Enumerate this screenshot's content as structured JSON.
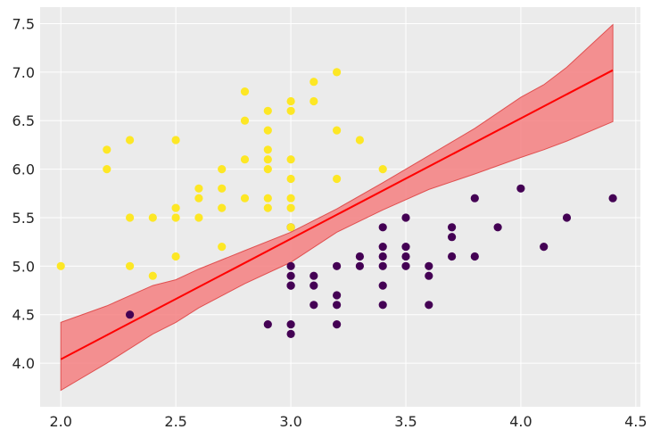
{
  "chart_data": {
    "type": "scatter",
    "title": "",
    "xlabel": "",
    "ylabel": "",
    "xlim": [
      1.91,
      4.52
    ],
    "ylim": [
      3.55,
      7.67
    ],
    "grid": true,
    "colors": {
      "background": "#ebebeb",
      "grid": "#ffffff",
      "class0": "#440154",
      "class1": "#fde725",
      "line": "#ff0000",
      "band": "#f47f80"
    },
    "x_ticks": [
      {
        "value": 2.0,
        "label": "2.0"
      },
      {
        "value": 2.5,
        "label": "2.5"
      },
      {
        "value": 3.0,
        "label": "3.0"
      },
      {
        "value": 3.5,
        "label": "3.5"
      },
      {
        "value": 4.0,
        "label": "4.0"
      },
      {
        "value": 4.5,
        "label": "4.5"
      }
    ],
    "y_ticks": [
      {
        "value": 4.0,
        "label": "4.0"
      },
      {
        "value": 4.5,
        "label": "4.5"
      },
      {
        "value": 5.0,
        "label": "5.0"
      },
      {
        "value": 5.5,
        "label": "5.5"
      },
      {
        "value": 6.0,
        "label": "6.0"
      },
      {
        "value": 6.5,
        "label": "6.5"
      },
      {
        "value": 7.0,
        "label": "7.0"
      },
      {
        "value": 7.5,
        "label": "7.5"
      }
    ],
    "series": [
      {
        "class": 0,
        "points": [
          [
            2.3,
            4.5
          ],
          [
            2.9,
            4.4
          ],
          [
            3.0,
            5.0
          ],
          [
            3.0,
            4.9
          ],
          [
            3.0,
            4.8
          ],
          [
            3.0,
            4.8
          ],
          [
            3.0,
            4.4
          ],
          [
            3.0,
            4.3
          ],
          [
            3.0,
            5.4
          ],
          [
            3.1,
            4.9
          ],
          [
            3.1,
            4.8
          ],
          [
            3.1,
            4.6
          ],
          [
            3.2,
            5.0
          ],
          [
            3.2,
            4.7
          ],
          [
            3.2,
            4.6
          ],
          [
            3.2,
            4.4
          ],
          [
            3.3,
            5.1
          ],
          [
            3.3,
            5.0
          ],
          [
            3.4,
            5.4
          ],
          [
            3.4,
            5.2
          ],
          [
            3.4,
            5.1
          ],
          [
            3.4,
            5.0
          ],
          [
            3.4,
            4.8
          ],
          [
            3.4,
            4.6
          ],
          [
            3.5,
            5.5
          ],
          [
            3.5,
            5.2
          ],
          [
            3.5,
            5.1
          ],
          [
            3.5,
            5.0
          ],
          [
            3.6,
            5.0
          ],
          [
            3.6,
            4.9
          ],
          [
            3.6,
            4.6
          ],
          [
            3.7,
            5.4
          ],
          [
            3.7,
            5.3
          ],
          [
            3.7,
            5.1
          ],
          [
            3.8,
            5.7
          ],
          [
            3.8,
            5.1
          ],
          [
            3.9,
            5.4
          ],
          [
            4.0,
            5.8
          ],
          [
            4.1,
            5.2
          ],
          [
            4.2,
            5.5
          ],
          [
            4.4,
            5.7
          ]
        ]
      },
      {
        "class": 1,
        "points": [
          [
            2.0,
            5.0
          ],
          [
            2.2,
            6.2
          ],
          [
            2.2,
            6.0
          ],
          [
            2.3,
            6.3
          ],
          [
            2.3,
            5.5
          ],
          [
            2.3,
            5.0
          ],
          [
            2.4,
            5.5
          ],
          [
            2.4,
            4.9
          ],
          [
            2.5,
            6.3
          ],
          [
            2.5,
            5.6
          ],
          [
            2.5,
            5.5
          ],
          [
            2.5,
            5.1
          ],
          [
            2.6,
            5.8
          ],
          [
            2.6,
            5.7
          ],
          [
            2.6,
            5.5
          ],
          [
            2.7,
            6.0
          ],
          [
            2.7,
            5.8
          ],
          [
            2.7,
            5.6
          ],
          [
            2.7,
            5.2
          ],
          [
            2.8,
            6.8
          ],
          [
            2.8,
            6.5
          ],
          [
            2.8,
            6.1
          ],
          [
            2.8,
            5.7
          ],
          [
            2.9,
            6.6
          ],
          [
            2.9,
            6.4
          ],
          [
            2.9,
            6.2
          ],
          [
            2.9,
            6.1
          ],
          [
            2.9,
            6.0
          ],
          [
            2.9,
            5.7
          ],
          [
            2.9,
            5.6
          ],
          [
            3.0,
            6.7
          ],
          [
            3.0,
            6.6
          ],
          [
            3.0,
            6.1
          ],
          [
            3.0,
            5.9
          ],
          [
            3.0,
            5.7
          ],
          [
            3.0,
            5.6
          ],
          [
            3.0,
            5.4
          ],
          [
            3.1,
            6.9
          ],
          [
            3.1,
            6.7
          ],
          [
            3.2,
            7.0
          ],
          [
            3.2,
            6.4
          ],
          [
            3.2,
            5.9
          ],
          [
            3.3,
            6.3
          ],
          [
            3.4,
            6.0
          ]
        ]
      }
    ],
    "fit_line": [
      [
        2.0,
        4.04
      ],
      [
        4.4,
        7.02
      ]
    ],
    "band": {
      "x": [
        2.0,
        2.2,
        2.4,
        2.5,
        2.6,
        2.8,
        3.0,
        3.2,
        3.4,
        3.6,
        3.8,
        4.0,
        4.1,
        4.2,
        4.4
      ],
      "upper": [
        4.42,
        4.59,
        4.8,
        4.86,
        4.97,
        5.16,
        5.35,
        5.59,
        5.86,
        6.14,
        6.42,
        6.74,
        6.87,
        7.05,
        7.49
      ],
      "lower": [
        3.72,
        4.0,
        4.3,
        4.42,
        4.57,
        4.82,
        5.04,
        5.35,
        5.58,
        5.79,
        5.95,
        6.12,
        6.2,
        6.29,
        6.49
      ]
    }
  }
}
